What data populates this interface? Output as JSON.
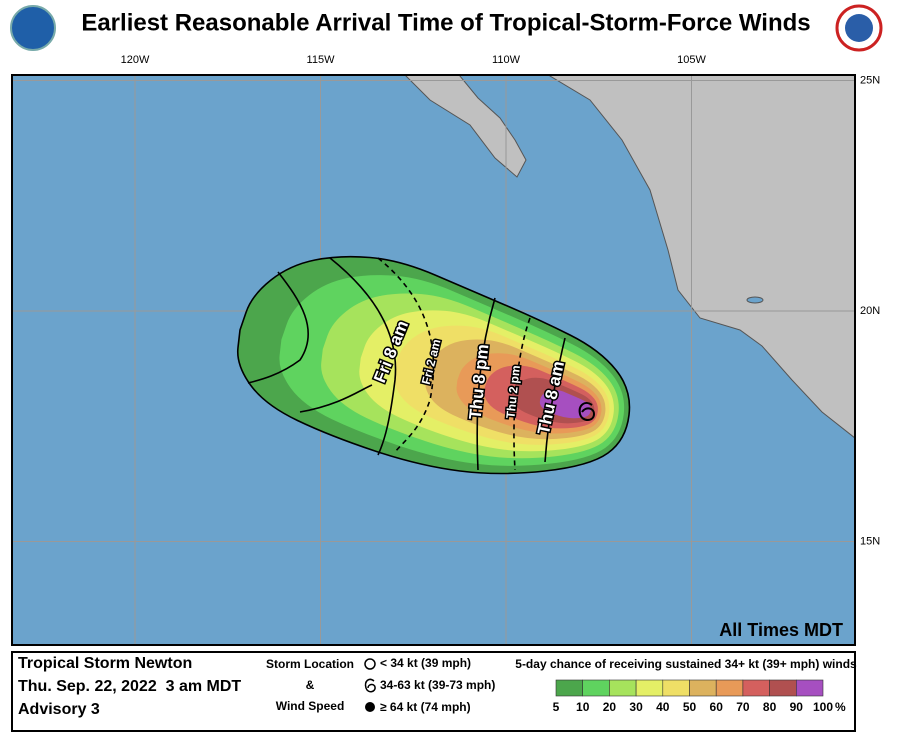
{
  "header": {
    "title": "Earliest Reasonable Arrival Time of Tropical-Storm-Force Winds"
  },
  "map": {
    "lon_ticks": [
      {
        "value": -120,
        "label": "120W"
      },
      {
        "value": -115,
        "label": "115W"
      },
      {
        "value": -110,
        "label": "110W"
      },
      {
        "value": -105,
        "label": "105W"
      }
    ],
    "lat_ticks": [
      {
        "value": 25,
        "label": "25N"
      },
      {
        "value": 20,
        "label": "20N"
      },
      {
        "value": 15,
        "label": "15N"
      }
    ],
    "time_labels": [
      "Fri 8 am",
      "Fri 2 am",
      "Thu 8 pm",
      "Thu 2 pm",
      "Thu 8 am"
    ],
    "note": "All Times MDT"
  },
  "info": {
    "storm": "Tropical Storm Newton",
    "date": "Thu. Sep. 22, 2022  3 am MDT",
    "advisory": "Advisory 3"
  },
  "storm_legend": {
    "title_1": "Storm Location",
    "title_2": "&",
    "title_3": "Wind Speed",
    "items": [
      "< 34 kt (39 mph)",
      "34-63 kt (39-73 mph)",
      "≥ 64 kt (74 mph)"
    ]
  },
  "scale": {
    "title": "5-day chance of receiving sustained 34+ kt (39+ mph) winds",
    "ticks": [
      5,
      10,
      20,
      30,
      40,
      50,
      60,
      70,
      80,
      90,
      100
    ],
    "unit": "%",
    "colors": [
      "#4ca64c",
      "#5fd35f",
      "#a6e35c",
      "#e4ef66",
      "#efdf66",
      "#dcb25e",
      "#e89a58",
      "#d4605e",
      "#b05050",
      "#a64fc0"
    ]
  }
}
